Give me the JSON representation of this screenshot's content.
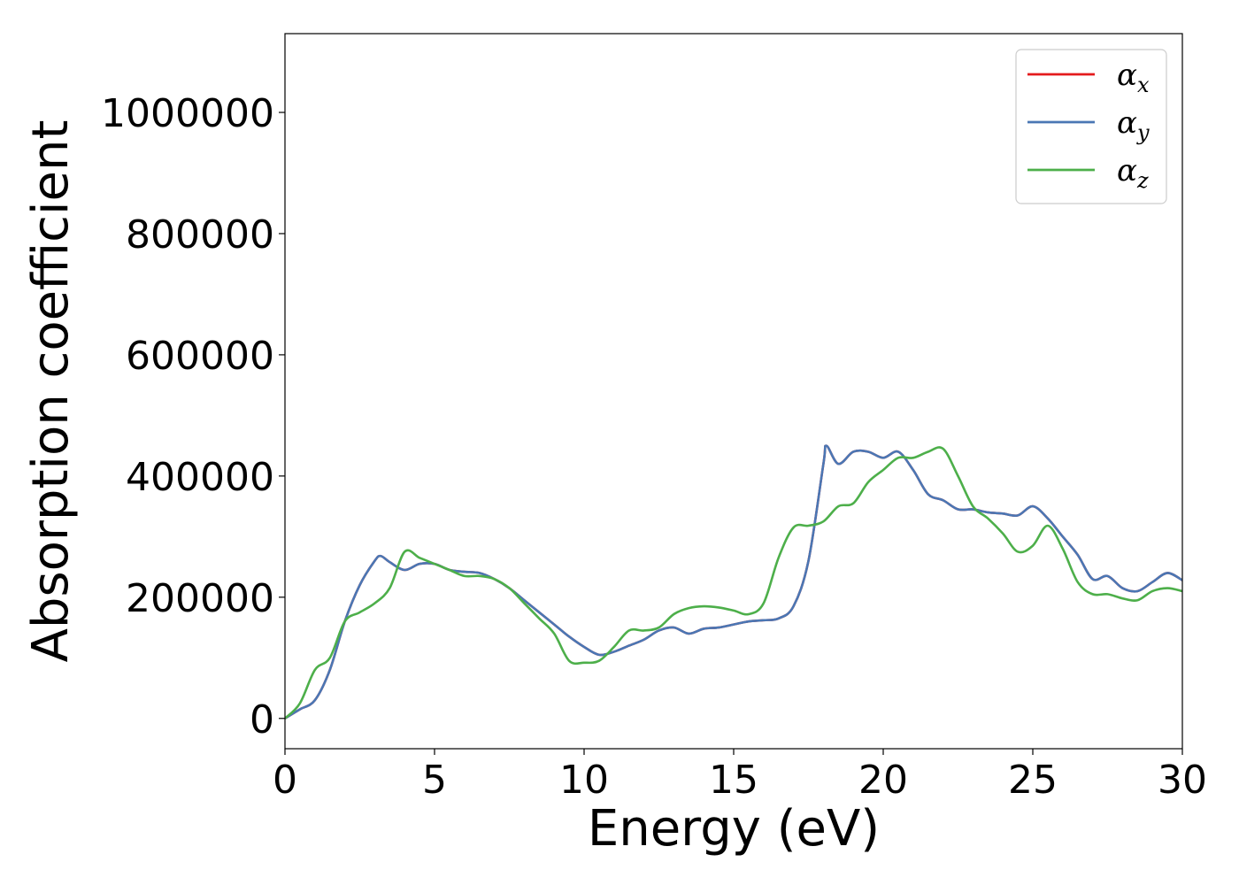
{
  "chart_data": {
    "type": "line",
    "xlabel": "Energy (eV)",
    "ylabel": "Absorption coefficient",
    "xlim": [
      0,
      30
    ],
    "ylim": [
      -50000,
      1130000
    ],
    "xticks": [
      0,
      5,
      10,
      15,
      20,
      25,
      30
    ],
    "yticks": [
      0,
      200000,
      400000,
      600000,
      800000,
      1000000
    ],
    "grid": false,
    "legend_position": "top-right",
    "series": [
      {
        "name": "α_x",
        "label_base": "α",
        "label_sub": "x",
        "color": "#e41a1c",
        "x": [
          0,
          0.5,
          1,
          1.5,
          2,
          2.5,
          3,
          3.2,
          3.5,
          4,
          4.5,
          5,
          5.5,
          6,
          6.5,
          7,
          7.5,
          8,
          8.5,
          9,
          9.5,
          10,
          10.5,
          11,
          11.5,
          12,
          12.5,
          13,
          13.5,
          14,
          14.5,
          15,
          15.5,
          16,
          16.5,
          17,
          17.5,
          18,
          18.1,
          18.5,
          19,
          19.5,
          20,
          20.5,
          21,
          21.5,
          22,
          22.5,
          23,
          23.5,
          24,
          24.5,
          25,
          25.5,
          26,
          26.5,
          27,
          27.5,
          28,
          28.5,
          29,
          29.5,
          30
        ],
        "values": [
          0,
          15000,
          30000,
          80000,
          160000,
          220000,
          260000,
          268000,
          258000,
          245000,
          255000,
          255000,
          245000,
          242000,
          240000,
          230000,
          215000,
          195000,
          175000,
          155000,
          135000,
          118000,
          105000,
          110000,
          120000,
          130000,
          145000,
          150000,
          140000,
          148000,
          150000,
          155000,
          160000,
          162000,
          165000,
          185000,
          260000,
          420000,
          450000,
          420000,
          440000,
          440000,
          430000,
          440000,
          410000,
          370000,
          360000,
          345000,
          345000,
          340000,
          338000,
          335000,
          350000,
          330000,
          300000,
          270000,
          230000,
          235000,
          215000,
          210000,
          225000,
          240000,
          228000
        ]
      },
      {
        "name": "α_y",
        "label_base": "α",
        "label_sub": "y",
        "color": "#4a77b4",
        "x": [
          0,
          0.5,
          1,
          1.5,
          2,
          2.5,
          3,
          3.2,
          3.5,
          4,
          4.5,
          5,
          5.5,
          6,
          6.5,
          7,
          7.5,
          8,
          8.5,
          9,
          9.5,
          10,
          10.5,
          11,
          11.5,
          12,
          12.5,
          13,
          13.5,
          14,
          14.5,
          15,
          15.5,
          16,
          16.5,
          17,
          17.5,
          18,
          18.1,
          18.5,
          19,
          19.5,
          20,
          20.5,
          21,
          21.5,
          22,
          22.5,
          23,
          23.5,
          24,
          24.5,
          25,
          25.5,
          26,
          26.5,
          27,
          27.5,
          28,
          28.5,
          29,
          29.5,
          30
        ],
        "values": [
          0,
          15000,
          30000,
          80000,
          160000,
          220000,
          260000,
          268000,
          258000,
          245000,
          255000,
          255000,
          245000,
          242000,
          240000,
          230000,
          215000,
          195000,
          175000,
          155000,
          135000,
          118000,
          105000,
          110000,
          120000,
          130000,
          145000,
          150000,
          140000,
          148000,
          150000,
          155000,
          160000,
          162000,
          165000,
          185000,
          260000,
          420000,
          450000,
          420000,
          440000,
          440000,
          430000,
          440000,
          410000,
          370000,
          360000,
          345000,
          345000,
          340000,
          338000,
          335000,
          350000,
          330000,
          300000,
          270000,
          230000,
          235000,
          215000,
          210000,
          225000,
          240000,
          228000
        ]
      },
      {
        "name": "α_z",
        "label_base": "α",
        "label_sub": "z",
        "color": "#4daf4a",
        "x": [
          0,
          0.5,
          1,
          1.5,
          2,
          2.5,
          3,
          3.5,
          4,
          4.5,
          5,
          5.5,
          6,
          6.5,
          7,
          7.5,
          8,
          8.5,
          9,
          9.5,
          10,
          10.5,
          11,
          11.5,
          12,
          12.5,
          13,
          13.5,
          14,
          14.5,
          15,
          15.5,
          16,
          16.5,
          17,
          17.5,
          18,
          18.5,
          19,
          19.5,
          20,
          20.5,
          21,
          21.5,
          22,
          22.5,
          23,
          23.5,
          24,
          24.5,
          25,
          25.5,
          26,
          26.5,
          27,
          27.5,
          28,
          28.5,
          29,
          29.5,
          30
        ],
        "values": [
          0,
          25000,
          80000,
          100000,
          160000,
          175000,
          190000,
          215000,
          275000,
          265000,
          255000,
          245000,
          235000,
          235000,
          230000,
          215000,
          190000,
          165000,
          140000,
          95000,
          92000,
          95000,
          118000,
          145000,
          145000,
          150000,
          172000,
          182000,
          185000,
          183000,
          178000,
          172000,
          190000,
          265000,
          315000,
          318000,
          325000,
          350000,
          355000,
          390000,
          410000,
          430000,
          430000,
          440000,
          445000,
          400000,
          350000,
          330000,
          305000,
          275000,
          285000,
          318000,
          280000,
          225000,
          205000,
          205000,
          198000,
          195000,
          210000,
          215000,
          210000
        ]
      }
    ]
  }
}
